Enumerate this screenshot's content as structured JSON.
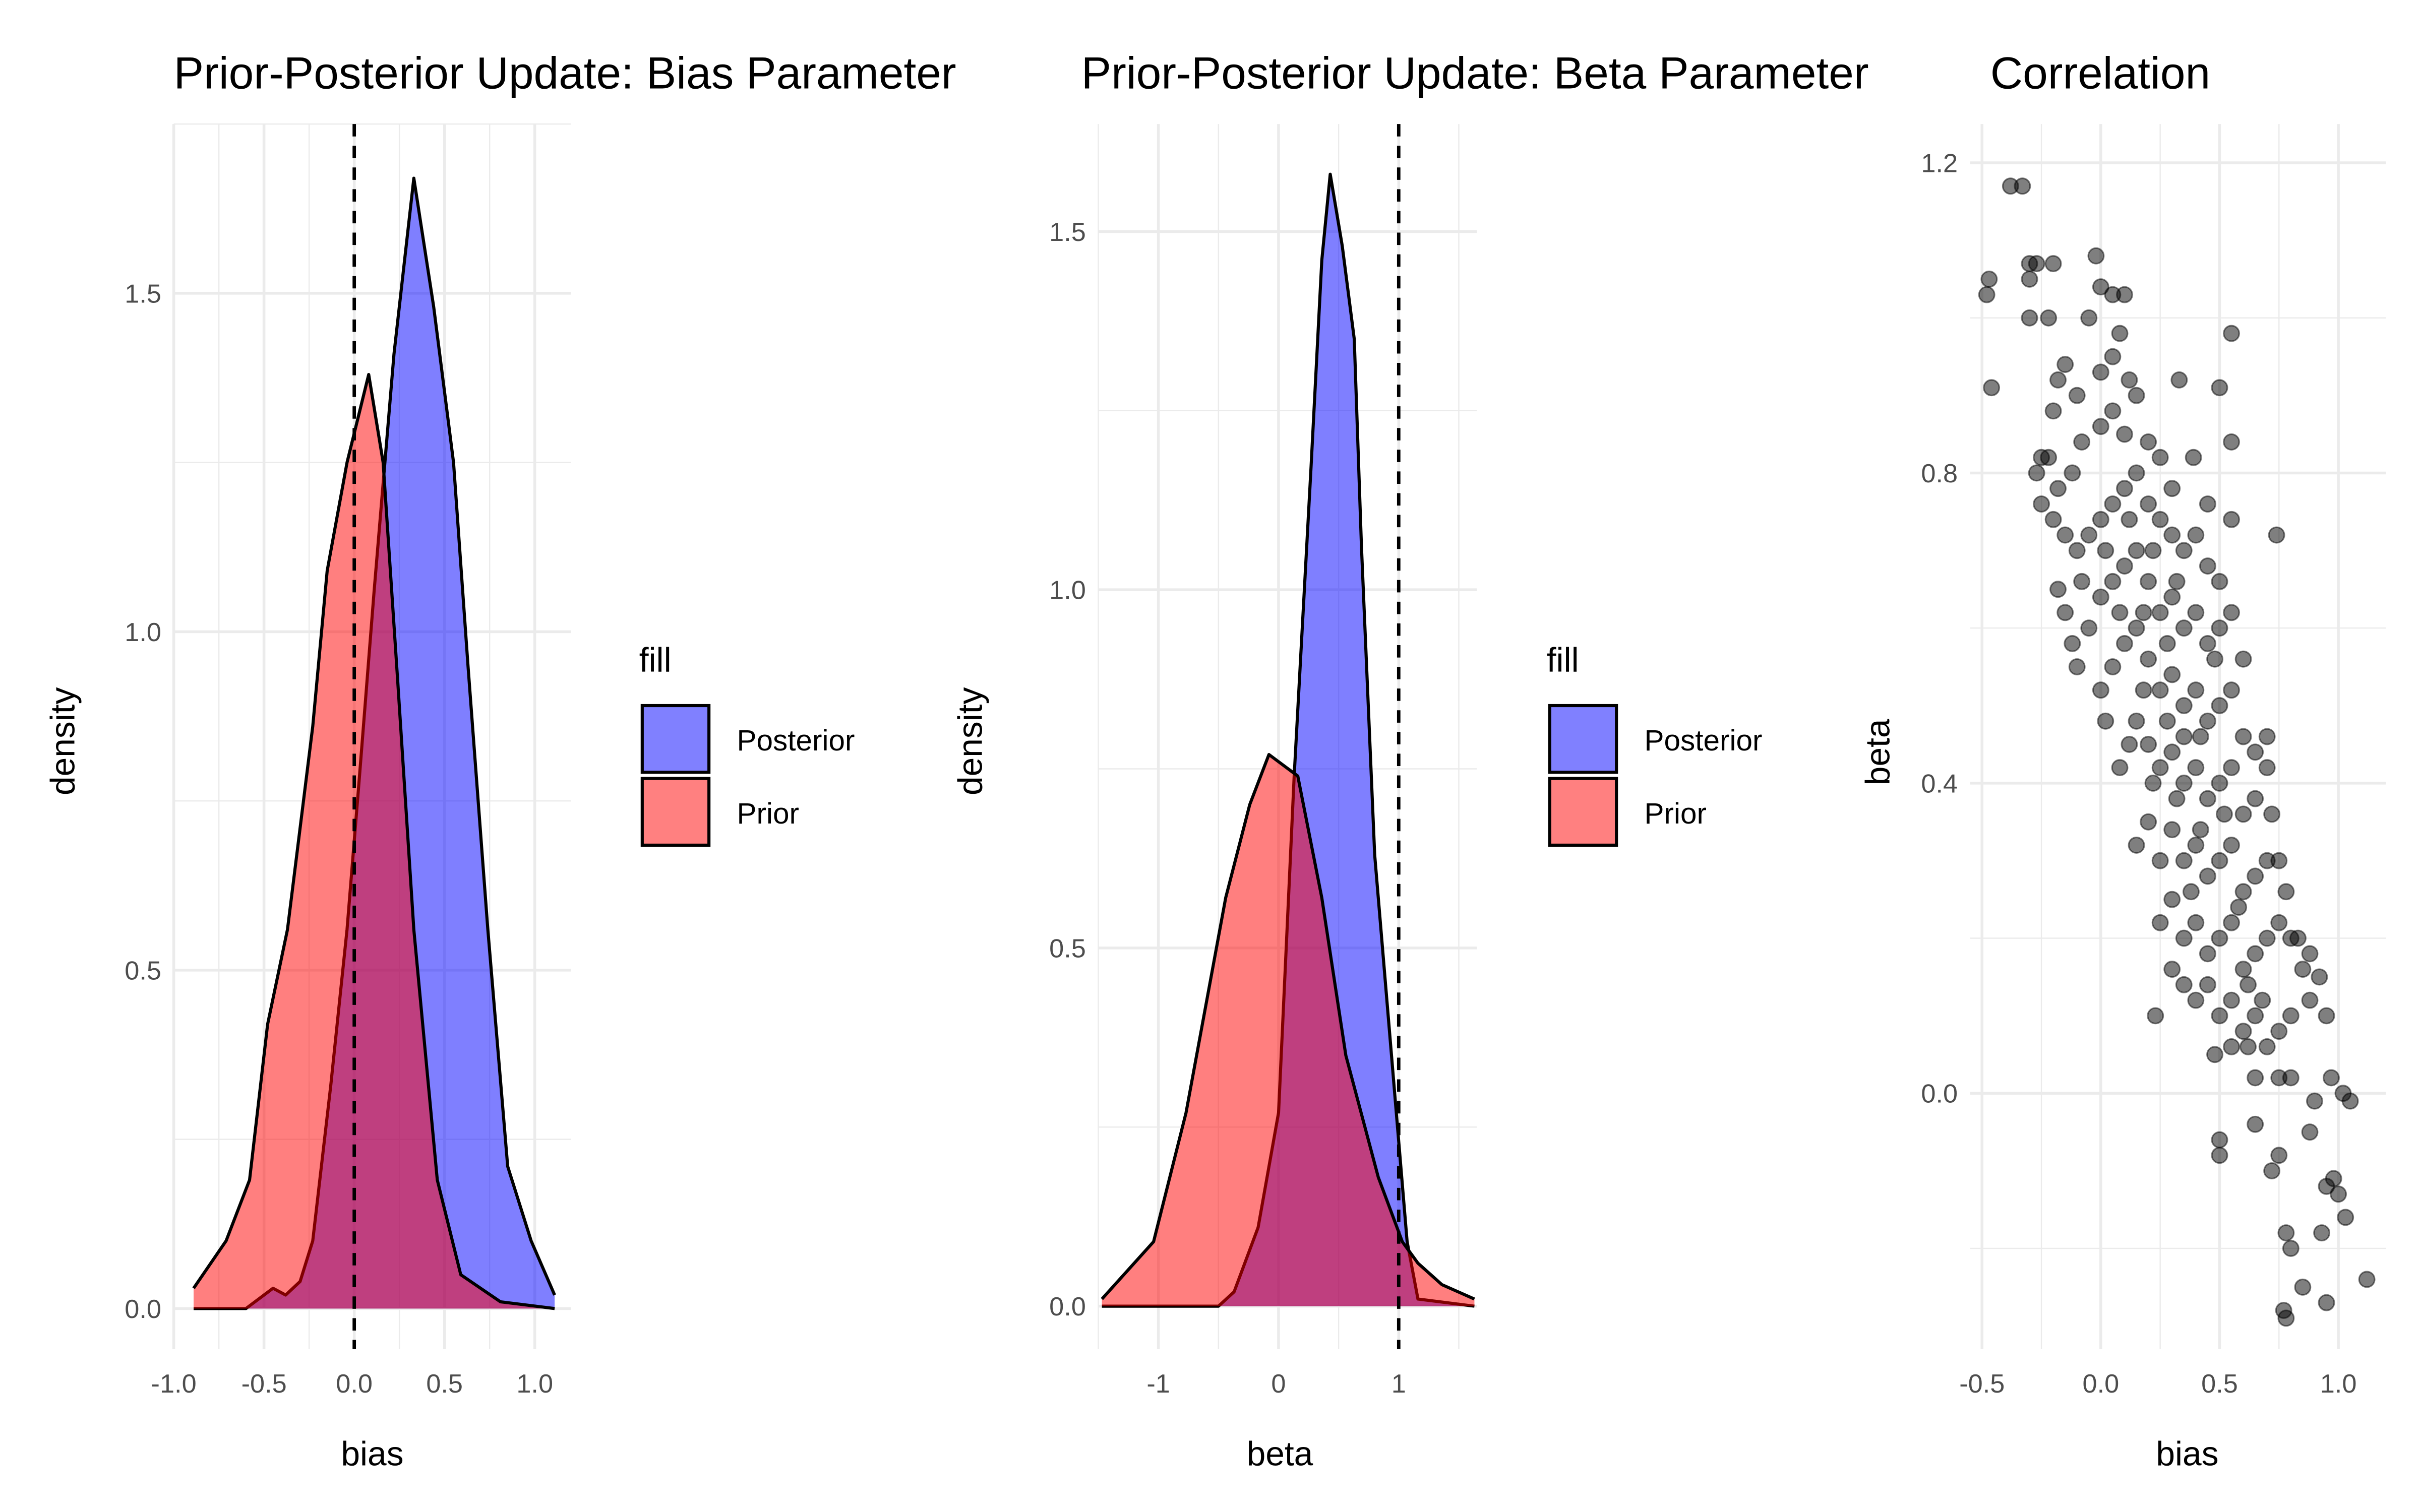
{
  "colors": {
    "posterior": "#0000FF",
    "prior": "#FF0000",
    "point": "#000000",
    "grid": "#EBEBEB"
  },
  "legend": {
    "title": "fill",
    "items": [
      {
        "label": "Posterior",
        "color": "#8080FF"
      },
      {
        "label": "Prior",
        "color": "#FF8080"
      }
    ]
  },
  "chart_data": [
    {
      "type": "area",
      "title": "Prior-Posterior Update: Bias Parameter",
      "xlabel": "bias",
      "ylabel": "density",
      "xlim": [
        -1.0,
        1.2
      ],
      "ylim": [
        -0.06,
        1.75
      ],
      "xticks": [
        "-1.0",
        "-0.5",
        "0.0",
        "0.5",
        "1.0"
      ],
      "xtick_values": [
        -1.0,
        -0.5,
        0.0,
        0.5,
        1.0
      ],
      "yticks": [
        "0.0",
        "0.5",
        "1.0",
        "1.5"
      ],
      "ytick_values": [
        0,
        0.5,
        1.0,
        1.5
      ],
      "vline": 0,
      "grid": true,
      "legend": "right",
      "series": [
        {
          "name": "Posterior",
          "points": [
            [
              -0.89,
              0
            ],
            [
              -0.6,
              0
            ],
            [
              -0.5,
              0.02
            ],
            [
              -0.45,
              0.03
            ],
            [
              -0.38,
              0.02
            ],
            [
              -0.3,
              0.04
            ],
            [
              -0.23,
              0.1
            ],
            [
              -0.13,
              0.33
            ],
            [
              -0.04,
              0.56
            ],
            [
              0.03,
              0.79
            ],
            [
              0.11,
              1.06
            ],
            [
              0.22,
              1.41
            ],
            [
              0.33,
              1.67
            ],
            [
              0.44,
              1.48
            ],
            [
              0.55,
              1.25
            ],
            [
              0.63,
              0.95
            ],
            [
              0.74,
              0.56
            ],
            [
              0.85,
              0.21
            ],
            [
              0.98,
              0.1
            ],
            [
              1.11,
              0.02
            ]
          ]
        },
        {
          "name": "Prior",
          "points": [
            [
              -0.89,
              0.03
            ],
            [
              -0.71,
              0.1
            ],
            [
              -0.58,
              0.19
            ],
            [
              -0.48,
              0.42
            ],
            [
              -0.37,
              0.56
            ],
            [
              -0.23,
              0.86
            ],
            [
              -0.15,
              1.09
            ],
            [
              -0.04,
              1.25
            ],
            [
              0.08,
              1.38
            ],
            [
              0.16,
              1.25
            ],
            [
              0.24,
              0.93
            ],
            [
              0.33,
              0.56
            ],
            [
              0.46,
              0.19
            ],
            [
              0.59,
              0.05
            ],
            [
              0.81,
              0.01
            ],
            [
              1.11,
              0
            ]
          ]
        }
      ]
    },
    {
      "type": "area",
      "title": "Prior-Posterior Update: Beta Parameter",
      "xlabel": "beta",
      "ylabel": "density",
      "xlim": [
        -1.5,
        1.65
      ],
      "ylim": [
        -0.06,
        1.65
      ],
      "xticks": [
        "-1",
        "0",
        "1"
      ],
      "xtick_values": [
        -1,
        0,
        1
      ],
      "yticks": [
        "0.0",
        "0.5",
        "1.0",
        "1.5"
      ],
      "ytick_values": [
        0,
        0.5,
        1.0,
        1.5
      ],
      "vline": 1,
      "grid": true,
      "legend": "right",
      "series": [
        {
          "name": "Posterior",
          "points": [
            [
              -1.47,
              0
            ],
            [
              -0.5,
              0
            ],
            [
              -0.37,
              0.02
            ],
            [
              -0.17,
              0.11
            ],
            [
              0.0,
              0.27
            ],
            [
              0.13,
              0.74
            ],
            [
              0.27,
              1.17
            ],
            [
              0.36,
              1.46
            ],
            [
              0.43,
              1.58
            ],
            [
              0.53,
              1.48
            ],
            [
              0.63,
              1.35
            ],
            [
              0.69,
              1.06
            ],
            [
              0.8,
              0.63
            ],
            [
              0.96,
              0.31
            ],
            [
              1.07,
              0.09
            ],
            [
              1.16,
              0.01
            ],
            [
              1.63,
              0
            ]
          ]
        },
        {
          "name": "Prior",
          "points": [
            [
              -1.47,
              0.01
            ],
            [
              -1.04,
              0.09
            ],
            [
              -0.77,
              0.27
            ],
            [
              -0.44,
              0.57
            ],
            [
              -0.24,
              0.7
            ],
            [
              -0.08,
              0.77
            ],
            [
              0.16,
              0.74
            ],
            [
              0.36,
              0.57
            ],
            [
              0.56,
              0.35
            ],
            [
              0.83,
              0.18
            ],
            [
              1.03,
              0.09
            ],
            [
              1.16,
              0.06
            ],
            [
              1.36,
              0.03
            ],
            [
              1.63,
              0.01
            ]
          ]
        }
      ]
    },
    {
      "type": "scatter",
      "title": "Correlation",
      "xlabel": "bias",
      "ylabel": "beta",
      "xlim": [
        -0.55,
        1.2
      ],
      "ylim": [
        -0.33,
        1.25
      ],
      "xticks": [
        "-0.5",
        "0.0",
        "0.5",
        "1.0"
      ],
      "xtick_values": [
        -0.5,
        0,
        0.5,
        1.0
      ],
      "yticks": [
        "0.0",
        "0.4",
        "0.8",
        "1.2"
      ],
      "ytick_values": [
        0,
        0.4,
        0.8,
        1.2
      ],
      "grid": true,
      "points": [
        [
          -0.48,
          1.03
        ],
        [
          -0.47,
          1.05
        ],
        [
          -0.46,
          0.91
        ],
        [
          -0.38,
          1.17
        ],
        [
          -0.33,
          1.17
        ],
        [
          -0.3,
          1.07
        ],
        [
          -0.27,
          1.07
        ],
        [
          -0.3,
          1.05
        ],
        [
          -0.3,
          1.0
        ],
        [
          -0.2,
          1.07
        ],
        [
          -0.22,
          1.0
        ],
        [
          -0.02,
          1.08
        ],
        [
          0.0,
          1.04
        ],
        [
          0.05,
          1.03
        ],
        [
          0.1,
          1.03
        ],
        [
          -0.05,
          1.0
        ],
        [
          0.08,
          0.98
        ],
        [
          0.55,
          0.98
        ],
        [
          0.33,
          0.92
        ],
        [
          0.5,
          0.91
        ],
        [
          0.55,
          0.84
        ],
        [
          0.74,
          0.72
        ],
        [
          0.39,
          0.82
        ],
        [
          -0.15,
          0.94
        ],
        [
          -0.18,
          0.92
        ],
        [
          -0.2,
          0.88
        ],
        [
          -0.1,
          0.9
        ],
        [
          0.0,
          0.93
        ],
        [
          0.05,
          0.95
        ],
        [
          0.12,
          0.92
        ],
        [
          0.15,
          0.9
        ],
        [
          -0.25,
          0.82
        ],
        [
          -0.22,
          0.82
        ],
        [
          -0.27,
          0.8
        ],
        [
          -0.25,
          0.76
        ],
        [
          -0.2,
          0.74
        ],
        [
          -0.18,
          0.78
        ],
        [
          -0.12,
          0.8
        ],
        [
          -0.08,
          0.84
        ],
        [
          0.0,
          0.86
        ],
        [
          0.05,
          0.88
        ],
        [
          0.1,
          0.85
        ],
        [
          0.2,
          0.84
        ],
        [
          0.25,
          0.82
        ],
        [
          0.3,
          0.78
        ],
        [
          0.45,
          0.76
        ],
        [
          0.55,
          0.74
        ],
        [
          -0.15,
          0.72
        ],
        [
          -0.1,
          0.7
        ],
        [
          -0.05,
          0.72
        ],
        [
          0.0,
          0.74
        ],
        [
          0.05,
          0.76
        ],
        [
          0.1,
          0.78
        ],
        [
          0.15,
          0.8
        ],
        [
          0.2,
          0.76
        ],
        [
          0.25,
          0.74
        ],
        [
          0.3,
          0.72
        ],
        [
          0.35,
          0.7
        ],
        [
          0.4,
          0.72
        ],
        [
          0.45,
          0.68
        ],
        [
          0.5,
          0.66
        ],
        [
          -0.18,
          0.65
        ],
        [
          -0.15,
          0.62
        ],
        [
          -0.12,
          0.58
        ],
        [
          -0.1,
          0.55
        ],
        [
          -0.05,
          0.6
        ],
        [
          0.0,
          0.64
        ],
        [
          0.05,
          0.66
        ],
        [
          0.1,
          0.68
        ],
        [
          0.15,
          0.7
        ],
        [
          0.2,
          0.66
        ],
        [
          0.25,
          0.62
        ],
        [
          0.3,
          0.64
        ],
        [
          0.35,
          0.6
        ],
        [
          0.4,
          0.62
        ],
        [
          0.45,
          0.58
        ],
        [
          0.5,
          0.6
        ],
        [
          0.55,
          0.62
        ],
        [
          0.6,
          0.56
        ],
        [
          0.0,
          0.52
        ],
        [
          0.02,
          0.48
        ],
        [
          0.05,
          0.55
        ],
        [
          0.1,
          0.58
        ],
        [
          0.15,
          0.6
        ],
        [
          0.2,
          0.56
        ],
        [
          0.25,
          0.52
        ],
        [
          0.3,
          0.54
        ],
        [
          0.35,
          0.5
        ],
        [
          0.4,
          0.52
        ],
        [
          0.45,
          0.48
        ],
        [
          0.5,
          0.5
        ],
        [
          0.55,
          0.52
        ],
        [
          0.6,
          0.46
        ],
        [
          0.65,
          0.44
        ],
        [
          0.7,
          0.46
        ],
        [
          0.08,
          0.42
        ],
        [
          0.12,
          0.45
        ],
        [
          0.15,
          0.48
        ],
        [
          0.2,
          0.45
        ],
        [
          0.25,
          0.42
        ],
        [
          0.3,
          0.44
        ],
        [
          0.35,
          0.4
        ],
        [
          0.4,
          0.42
        ],
        [
          0.45,
          0.38
        ],
        [
          0.5,
          0.4
        ],
        [
          0.55,
          0.42
        ],
        [
          0.6,
          0.36
        ],
        [
          0.65,
          0.38
        ],
        [
          0.7,
          0.42
        ],
        [
          0.72,
          0.36
        ],
        [
          0.15,
          0.32
        ],
        [
          0.2,
          0.35
        ],
        [
          0.25,
          0.3
        ],
        [
          0.3,
          0.34
        ],
        [
          0.35,
          0.3
        ],
        [
          0.4,
          0.32
        ],
        [
          0.45,
          0.28
        ],
        [
          0.5,
          0.3
        ],
        [
          0.55,
          0.32
        ],
        [
          0.6,
          0.26
        ],
        [
          0.65,
          0.28
        ],
        [
          0.7,
          0.3
        ],
        [
          0.75,
          0.3
        ],
        [
          0.78,
          0.26
        ],
        [
          0.25,
          0.22
        ],
        [
          0.3,
          0.25
        ],
        [
          0.35,
          0.2
        ],
        [
          0.4,
          0.22
        ],
        [
          0.45,
          0.18
        ],
        [
          0.5,
          0.2
        ],
        [
          0.55,
          0.22
        ],
        [
          0.6,
          0.16
        ],
        [
          0.65,
          0.18
        ],
        [
          0.7,
          0.2
        ],
        [
          0.75,
          0.22
        ],
        [
          0.8,
          0.2
        ],
        [
          0.85,
          0.16
        ],
        [
          0.3,
          0.16
        ],
        [
          0.35,
          0.14
        ],
        [
          0.4,
          0.12
        ],
        [
          0.45,
          0.14
        ],
        [
          0.5,
          0.1
        ],
        [
          0.55,
          0.12
        ],
        [
          0.6,
          0.08
        ],
        [
          0.65,
          0.1
        ],
        [
          0.7,
          0.06
        ],
        [
          0.75,
          0.08
        ],
        [
          0.8,
          0.1
        ],
        [
          0.88,
          0.12
        ],
        [
          0.23,
          0.1
        ],
        [
          0.48,
          0.05
        ],
        [
          0.55,
          0.06
        ],
        [
          0.62,
          0.06
        ],
        [
          0.65,
          0.02
        ],
        [
          0.75,
          0.02
        ],
        [
          0.8,
          0.02
        ],
        [
          0.5,
          -0.06
        ],
        [
          0.5,
          -0.08
        ],
        [
          0.65,
          -0.04
        ],
        [
          0.72,
          -0.1
        ],
        [
          0.75,
          -0.08
        ],
        [
          0.78,
          -0.18
        ],
        [
          0.8,
          -0.2
        ],
        [
          0.85,
          -0.25
        ],
        [
          0.95,
          -0.27
        ],
        [
          0.78,
          -0.29
        ],
        [
          0.77,
          -0.28
        ],
        [
          0.93,
          -0.18
        ],
        [
          0.95,
          -0.12
        ],
        [
          1.0,
          -0.13
        ],
        [
          1.03,
          -0.16
        ],
        [
          0.98,
          -0.11
        ],
        [
          1.12,
          -0.24
        ],
        [
          0.88,
          -0.05
        ],
        [
          0.9,
          -0.01
        ],
        [
          0.97,
          0.02
        ],
        [
          1.02,
          0.0
        ],
        [
          1.05,
          -0.01
        ],
        [
          0.95,
          0.1
        ],
        [
          0.88,
          0.18
        ],
        [
          0.83,
          0.2
        ],
        [
          0.92,
          0.15
        ],
        [
          0.35,
          0.46
        ],
        [
          0.28,
          0.58
        ],
        [
          0.18,
          0.52
        ],
        [
          0.08,
          0.62
        ],
        [
          0.42,
          0.34
        ],
        [
          0.38,
          0.26
        ],
        [
          0.52,
          0.36
        ],
        [
          0.58,
          0.24
        ],
        [
          0.62,
          0.14
        ],
        [
          0.68,
          0.12
        ],
        [
          0.32,
          0.66
        ],
        [
          0.22,
          0.7
        ],
        [
          0.12,
          0.74
        ],
        [
          0.02,
          0.7
        ],
        [
          -0.08,
          0.66
        ],
        [
          0.48,
          0.56
        ],
        [
          0.42,
          0.46
        ],
        [
          0.32,
          0.38
        ],
        [
          0.22,
          0.4
        ],
        [
          0.18,
          0.62
        ],
        [
          0.28,
          0.48
        ]
      ]
    }
  ]
}
